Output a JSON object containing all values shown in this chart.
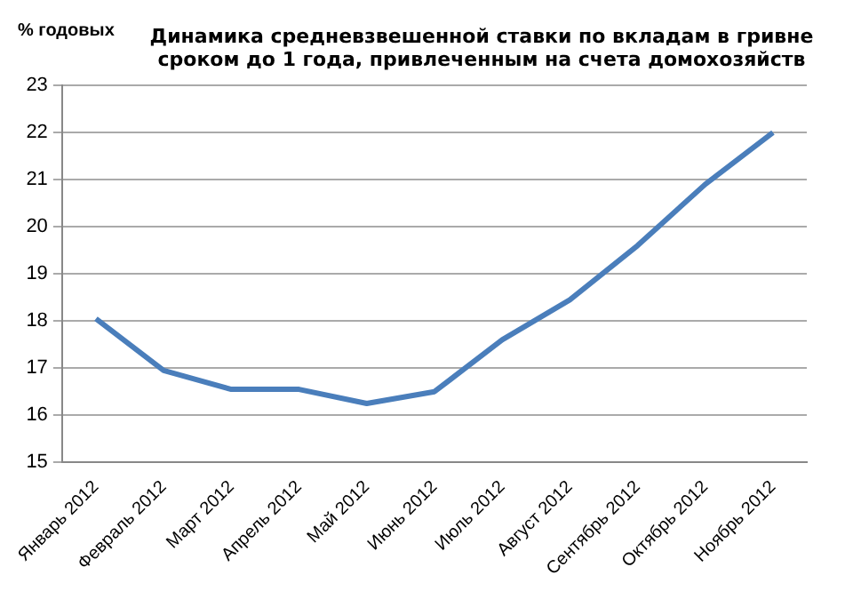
{
  "chart_data": {
    "type": "line",
    "title": "Динамика средневзвешенной ставки по вкладам в гривне\nсроком до 1 года, привлеченным на счета домохозяйств",
    "ylabel": "% годовых",
    "categories": [
      "Январь 2012",
      "Февраль 2012",
      "Март 2012",
      "Апрель 2012",
      "Май 2012",
      "Июнь 2012",
      "Июль 2012",
      "Август 2012",
      "Сентябрь 2012",
      "Октябрь 2012",
      "Ноябрь 2012"
    ],
    "series": [
      {
        "color": "#4a7ebb",
        "values": [
          18.05,
          16.95,
          16.55,
          16.55,
          16.25,
          16.5,
          17.6,
          18.45,
          19.6,
          20.9,
          22.0
        ]
      }
    ],
    "ylim": [
      15,
      23
    ],
    "yticks": [
      15,
      16,
      17,
      18,
      19,
      20,
      21,
      22,
      23
    ],
    "grid": "y",
    "legend": false,
    "marker": "none",
    "line_style": "solid"
  }
}
